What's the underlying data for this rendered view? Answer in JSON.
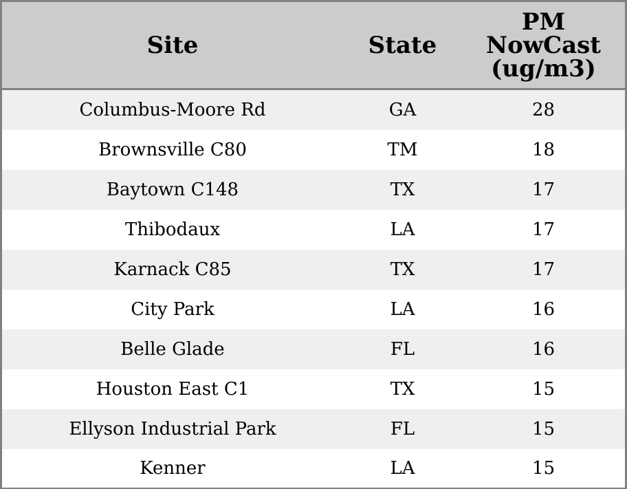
{
  "chart_data": {
    "type": "table",
    "columns": [
      "Site",
      "State",
      "PM NowCast (ug/m3)"
    ],
    "header_lines": {
      "site": "Site",
      "state": "State",
      "value": [
        "PM",
        "NowCast",
        "(ug/m3)"
      ]
    },
    "rows": [
      {
        "site": "Columbus-Moore Rd",
        "state": "GA",
        "value": "28"
      },
      {
        "site": "Brownsville C80",
        "state": "TM",
        "value": "18"
      },
      {
        "site": "Baytown C148",
        "state": "TX",
        "value": "17"
      },
      {
        "site": "Thibodaux",
        "state": "LA",
        "value": "17"
      },
      {
        "site": "Karnack C85",
        "state": "TX",
        "value": "17"
      },
      {
        "site": "City Park",
        "state": "LA",
        "value": "16"
      },
      {
        "site": "Belle Glade",
        "state": "FL",
        "value": "16"
      },
      {
        "site": "Houston East C1",
        "state": "TX",
        "value": "15"
      },
      {
        "site": "Ellyson Industrial Park",
        "state": "FL",
        "value": "15"
      },
      {
        "site": "Kenner",
        "state": "LA",
        "value": "15"
      }
    ],
    "colors": {
      "header_bg": "#cccccc",
      "row_alt_bg": "#efefef",
      "row_bg": "#ffffff",
      "border": "#808080"
    }
  }
}
